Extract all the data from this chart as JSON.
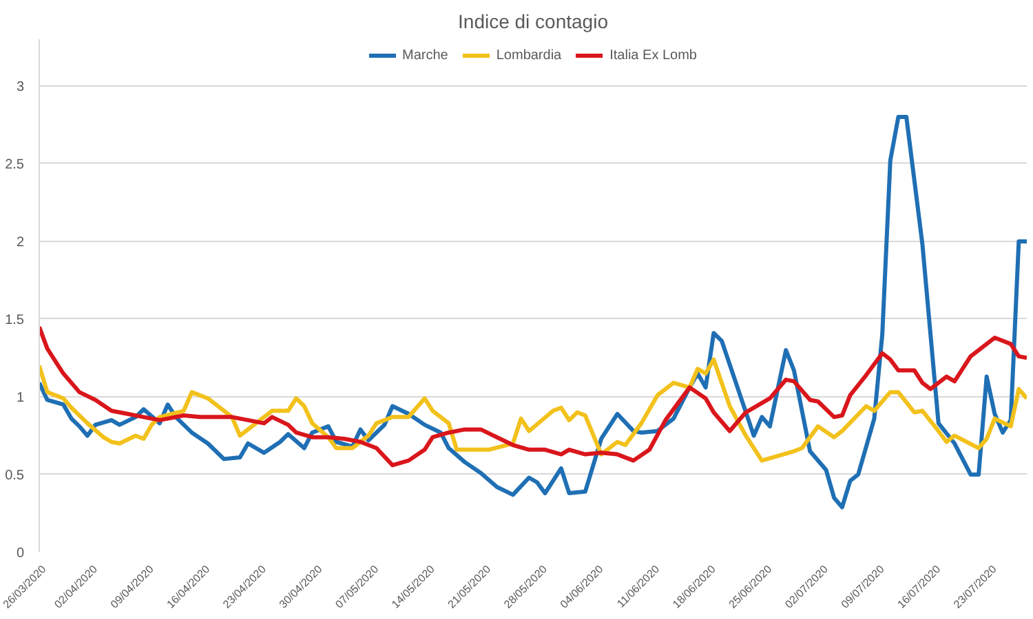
{
  "chart_data": {
    "type": "line",
    "title": "Indice di contagio",
    "xlim": [
      "2020-03-26",
      "2020-07-27"
    ],
    "xticks": [
      {
        "value": "2020-03-26",
        "label": "26/03/2020"
      },
      {
        "value": "2020-04-02",
        "label": "02/04/2020"
      },
      {
        "value": "2020-04-09",
        "label": "09/04/2020"
      },
      {
        "value": "2020-04-16",
        "label": "16/04/2020"
      },
      {
        "value": "2020-04-23",
        "label": "23/04/2020"
      },
      {
        "value": "2020-04-30",
        "label": "30/04/2020"
      },
      {
        "value": "2020-05-07",
        "label": "07/05/2020"
      },
      {
        "value": "2020-05-14",
        "label": "14/05/2020"
      },
      {
        "value": "2020-05-21",
        "label": "21/05/2020"
      },
      {
        "value": "2020-05-28",
        "label": "28/05/2020"
      },
      {
        "value": "2020-06-04",
        "label": "04/06/2020"
      },
      {
        "value": "2020-06-11",
        "label": "11/06/2020"
      },
      {
        "value": "2020-06-18",
        "label": "18/06/2020"
      },
      {
        "value": "2020-06-25",
        "label": "25/06/2020"
      },
      {
        "value": "2020-07-02",
        "label": "02/07/2020"
      },
      {
        "value": "2020-07-09",
        "label": "09/07/2020"
      },
      {
        "value": "2020-07-16",
        "label": "16/07/2020"
      },
      {
        "value": "2020-07-23",
        "label": "23/07/2020"
      }
    ],
    "ylim": [
      0,
      3.3
    ],
    "yticks": [
      0,
      0.5,
      1,
      1.5,
      2,
      2.5,
      3
    ],
    "grid": "y",
    "legend": "top",
    "marker": "none",
    "line_style": "solid",
    "series": [
      {
        "name": "Marche",
        "color": "#1f6fb4",
        "x": [
          "2020-03-26",
          "2020-03-27",
          "2020-03-29",
          "2020-03-30",
          "2020-03-31",
          "2020-04-01",
          "2020-04-02",
          "2020-04-04",
          "2020-04-05",
          "2020-04-07",
          "2020-04-08",
          "2020-04-10",
          "2020-04-11",
          "2020-04-12",
          "2020-04-14",
          "2020-04-16",
          "2020-04-18",
          "2020-04-20",
          "2020-04-21",
          "2020-04-23",
          "2020-04-25",
          "2020-04-26",
          "2020-04-28",
          "2020-04-29",
          "2020-05-01",
          "2020-05-02",
          "2020-05-04",
          "2020-05-05",
          "2020-05-06",
          "2020-05-08",
          "2020-05-09",
          "2020-05-11",
          "2020-05-13",
          "2020-05-15",
          "2020-05-16",
          "2020-05-18",
          "2020-05-20",
          "2020-05-22",
          "2020-05-24",
          "2020-05-26",
          "2020-05-27",
          "2020-05-28",
          "2020-05-30",
          "2020-05-31",
          "2020-06-02",
          "2020-06-04",
          "2020-06-06",
          "2020-06-08",
          "2020-06-09",
          "2020-06-11",
          "2020-06-13",
          "2020-06-15",
          "2020-06-16",
          "2020-06-17",
          "2020-06-18",
          "2020-06-19",
          "2020-06-23",
          "2020-06-24",
          "2020-06-25",
          "2020-06-27",
          "2020-06-28",
          "2020-06-30",
          "2020-07-02",
          "2020-07-03",
          "2020-07-04",
          "2020-07-05",
          "2020-07-06",
          "2020-07-08",
          "2020-07-09",
          "2020-07-10",
          "2020-07-11",
          "2020-07-12",
          "2020-07-14",
          "2020-07-16",
          "2020-07-18",
          "2020-07-20",
          "2020-07-21",
          "2020-07-22",
          "2020-07-23",
          "2020-07-24",
          "2020-07-25",
          "2020-07-26",
          "2020-07-27"
        ],
        "values": [
          1.09,
          0.98,
          0.95,
          0.86,
          0.81,
          0.75,
          0.82,
          0.85,
          0.82,
          0.87,
          0.92,
          0.83,
          0.95,
          0.87,
          0.77,
          0.7,
          0.6,
          0.61,
          0.7,
          0.64,
          0.71,
          0.76,
          0.67,
          0.77,
          0.81,
          0.71,
          0.68,
          0.79,
          0.72,
          0.82,
          0.94,
          0.89,
          0.82,
          0.77,
          0.67,
          0.58,
          0.51,
          0.42,
          0.37,
          0.48,
          0.45,
          0.38,
          0.54,
          0.38,
          0.39,
          0.73,
          0.89,
          0.78,
          0.77,
          0.78,
          0.86,
          1.06,
          1.15,
          1.06,
          1.41,
          1.36,
          0.75,
          0.87,
          0.81,
          1.3,
          1.17,
          0.65,
          0.53,
          0.35,
          0.29,
          0.46,
          0.5,
          0.86,
          1.4,
          2.52,
          2.8,
          2.8,
          1.98,
          0.83,
          0.7,
          0.5,
          0.5,
          1.13,
          0.89,
          0.77,
          0.85,
          2.0,
          2.0
        ]
      },
      {
        "name": "Lombardia",
        "color": "#f2c11b",
        "x": [
          "2020-03-26",
          "2020-03-27",
          "2020-03-29",
          "2020-03-30",
          "2020-04-01",
          "2020-04-03",
          "2020-04-04",
          "2020-04-05",
          "2020-04-07",
          "2020-04-08",
          "2020-04-09",
          "2020-04-10",
          "2020-04-13",
          "2020-04-14",
          "2020-04-16",
          "2020-04-17",
          "2020-04-19",
          "2020-04-20",
          "2020-04-21",
          "2020-04-23",
          "2020-04-24",
          "2020-04-26",
          "2020-04-27",
          "2020-04-28",
          "2020-04-29",
          "2020-05-01",
          "2020-05-02",
          "2020-05-04",
          "2020-05-06",
          "2020-05-07",
          "2020-05-09",
          "2020-05-11",
          "2020-05-13",
          "2020-05-14",
          "2020-05-15",
          "2020-05-16",
          "2020-05-17",
          "2020-05-21",
          "2020-05-24",
          "2020-05-25",
          "2020-05-26",
          "2020-05-29",
          "2020-05-30",
          "2020-05-31",
          "2020-06-01",
          "2020-06-02",
          "2020-06-04",
          "2020-06-06",
          "2020-06-07",
          "2020-06-09",
          "2020-06-11",
          "2020-06-13",
          "2020-06-15",
          "2020-06-16",
          "2020-06-17",
          "2020-06-18",
          "2020-06-20",
          "2020-06-22",
          "2020-06-24",
          "2020-06-26",
          "2020-06-28",
          "2020-06-29",
          "2020-07-01",
          "2020-07-03",
          "2020-07-04",
          "2020-07-07",
          "2020-07-08",
          "2020-07-10",
          "2020-07-11",
          "2020-07-13",
          "2020-07-14",
          "2020-07-16",
          "2020-07-17",
          "2020-07-18",
          "2020-07-21",
          "2020-07-22",
          "2020-07-23",
          "2020-07-25",
          "2020-07-26",
          "2020-07-27"
        ],
        "values": [
          1.2,
          1.03,
          0.99,
          0.93,
          0.83,
          0.74,
          0.71,
          0.7,
          0.75,
          0.73,
          0.82,
          0.87,
          0.91,
          1.03,
          0.99,
          0.95,
          0.87,
          0.75,
          0.79,
          0.87,
          0.91,
          0.91,
          0.99,
          0.94,
          0.83,
          0.74,
          0.67,
          0.67,
          0.75,
          0.83,
          0.87,
          0.87,
          0.99,
          0.91,
          0.87,
          0.83,
          0.66,
          0.66,
          0.7,
          0.86,
          0.78,
          0.91,
          0.93,
          0.85,
          0.9,
          0.88,
          0.63,
          0.71,
          0.69,
          0.83,
          1.01,
          1.09,
          1.06,
          1.18,
          1.15,
          1.24,
          0.94,
          0.75,
          0.59,
          0.62,
          0.65,
          0.67,
          0.81,
          0.74,
          0.78,
          0.94,
          0.91,
          1.03,
          1.03,
          0.9,
          0.91,
          0.78,
          0.71,
          0.75,
          0.67,
          0.73,
          0.86,
          0.81,
          1.05,
          0.99
        ]
      },
      {
        "name": "Italia Ex Lomb",
        "color": "#d9161c",
        "x": [
          "2020-03-26",
          "2020-03-27",
          "2020-03-29",
          "2020-03-31",
          "2020-04-02",
          "2020-04-04",
          "2020-04-06",
          "2020-04-08",
          "2020-04-10",
          "2020-04-11",
          "2020-04-13",
          "2020-04-15",
          "2020-04-17",
          "2020-04-19",
          "2020-04-21",
          "2020-04-23",
          "2020-04-24",
          "2020-04-26",
          "2020-04-27",
          "2020-04-29",
          "2020-05-01",
          "2020-05-03",
          "2020-05-05",
          "2020-05-07",
          "2020-05-09",
          "2020-05-11",
          "2020-05-13",
          "2020-05-14",
          "2020-05-16",
          "2020-05-18",
          "2020-05-20",
          "2020-05-22",
          "2020-05-24",
          "2020-05-26",
          "2020-05-28",
          "2020-05-30",
          "2020-05-31",
          "2020-06-02",
          "2020-06-04",
          "2020-06-06",
          "2020-06-08",
          "2020-06-10",
          "2020-06-12",
          "2020-06-15",
          "2020-06-17",
          "2020-06-18",
          "2020-06-20",
          "2020-06-22",
          "2020-06-25",
          "2020-06-27",
          "2020-06-28",
          "2020-06-30",
          "2020-07-01",
          "2020-07-03",
          "2020-07-04",
          "2020-07-05",
          "2020-07-07",
          "2020-07-09",
          "2020-07-10",
          "2020-07-11",
          "2020-07-13",
          "2020-07-14",
          "2020-07-15",
          "2020-07-17",
          "2020-07-18",
          "2020-07-20",
          "2020-07-23",
          "2020-07-24",
          "2020-07-25",
          "2020-07-26",
          "2020-07-27"
        ],
        "values": [
          1.45,
          1.31,
          1.15,
          1.03,
          0.98,
          0.91,
          0.89,
          0.87,
          0.85,
          0.86,
          0.88,
          0.87,
          0.87,
          0.87,
          0.85,
          0.83,
          0.87,
          0.82,
          0.77,
          0.74,
          0.74,
          0.73,
          0.71,
          0.67,
          0.56,
          0.59,
          0.66,
          0.74,
          0.77,
          0.79,
          0.79,
          0.74,
          0.69,
          0.66,
          0.66,
          0.63,
          0.66,
          0.63,
          0.64,
          0.63,
          0.59,
          0.66,
          0.85,
          1.06,
          0.99,
          0.9,
          0.78,
          0.9,
          0.99,
          1.11,
          1.1,
          0.98,
          0.97,
          0.87,
          0.88,
          1.01,
          1.14,
          1.28,
          1.24,
          1.17,
          1.17,
          1.09,
          1.05,
          1.13,
          1.1,
          1.26,
          1.38,
          1.36,
          1.34,
          1.26,
          1.25
        ]
      }
    ]
  }
}
